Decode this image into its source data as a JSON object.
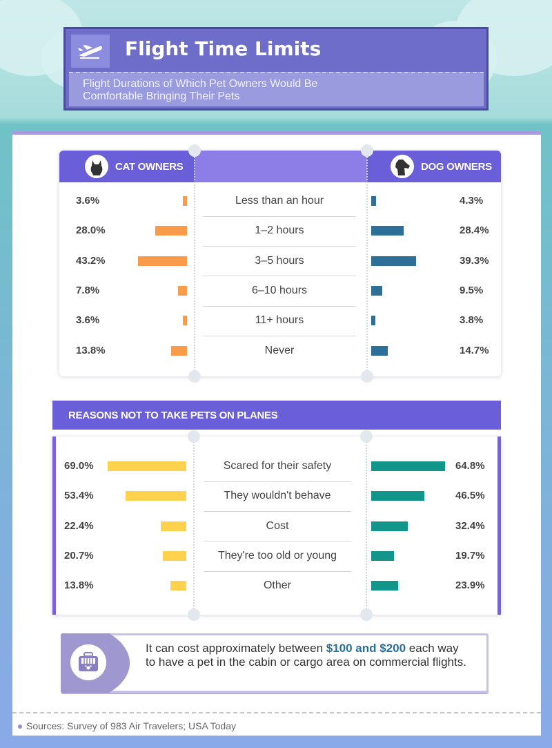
{
  "header": {
    "title": "Flight Time Limits",
    "subtitle": "Flight Durations of Which Pet Owners Would Be Comfortable Bringing Their Pets"
  },
  "colors": {
    "cat_bar": "#f89b4a",
    "dog_bar": "#2e6f98",
    "reason_left_bar": "#ffd24d",
    "reason_right_bar": "#12958a",
    "header_purple": "#6b5ed9"
  },
  "durations": {
    "left_header": "CAT OWNERS",
    "right_header": "DOG OWNERS",
    "left_icon": "cat-icon",
    "right_icon": "dog-icon"
  },
  "reasons": {
    "band_title": "REASONS NOT TO TAKE PETS ON PLANES"
  },
  "note": {
    "icon": "pet-carrier-icon",
    "text_before": "It can cost approximately between ",
    "highlight": "$100 and $200",
    "text_after": " each way to have a pet in the cabin or cargo area on commercial flights."
  },
  "sources": "Sources: Survey of 983 Air Travelers; USA Today",
  "chart_data": [
    {
      "type": "bar",
      "title": "",
      "categories": [
        "Less than an hour",
        "1–2 hours",
        "3–5 hours",
        "6–10 hours",
        "11+ hours",
        "Never"
      ],
      "series": [
        {
          "name": "CAT OWNERS",
          "values": [
            3.6,
            28.0,
            43.2,
            7.8,
            3.6,
            13.8
          ],
          "labels": [
            "3.6%",
            "28.0%",
            "43.2%",
            "7.8%",
            "3.6%",
            "13.8%"
          ]
        },
        {
          "name": "DOG OWNERS",
          "values": [
            4.3,
            28.4,
            39.3,
            9.5,
            3.8,
            14.7
          ],
          "labels": [
            "4.3%",
            "28.4%",
            "39.3%",
            "9.5%",
            "3.8%",
            "14.7%"
          ]
        }
      ],
      "xlabel": "",
      "ylabel": ""
    },
    {
      "type": "bar",
      "title": "REASONS NOT TO TAKE PETS ON PLANES",
      "categories": [
        "Scared for their safety",
        "They wouldn't behave",
        "Cost",
        "They're too old or young",
        "Other"
      ],
      "series": [
        {
          "name": "CAT OWNERS",
          "values": [
            69.0,
            53.4,
            22.4,
            20.7,
            13.8
          ],
          "labels": [
            "69.0%",
            "53.4%",
            "22.4%",
            "20.7%",
            "13.8%"
          ]
        },
        {
          "name": "DOG OWNERS",
          "values": [
            64.8,
            46.5,
            32.4,
            19.7,
            23.9
          ],
          "labels": [
            "64.8%",
            "46.5%",
            "32.4%",
            "19.7%",
            "23.9%"
          ]
        }
      ],
      "xlabel": "",
      "ylabel": ""
    }
  ]
}
